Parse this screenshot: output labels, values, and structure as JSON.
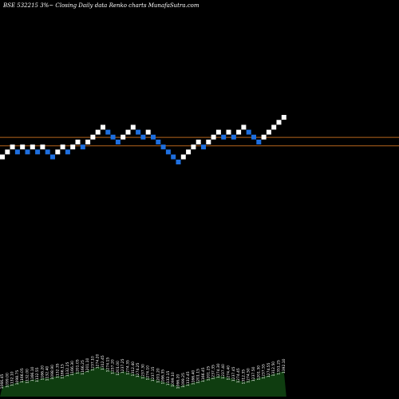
{
  "chart_data": {
    "type": "renko",
    "title": "BSE 532215 3%~  Closing Daily data  Renko  charts MunafaSutra.com",
    "colors": {
      "up": "#ffffff",
      "down": "#1e6fe0",
      "reference_line": "#b5651d",
      "volume_fill": "#0f3d10",
      "background": "#000000"
    },
    "reference_levels": [
      1235.0,
      1174.0
    ],
    "bricks": [
      {
        "close": 1099.0,
        "dir": "up"
      },
      {
        "close": 1132.0,
        "dir": "up"
      },
      {
        "close": 1166.0,
        "dir": "up"
      },
      {
        "close": 1132.0,
        "dir": "down"
      },
      {
        "close": 1166.0,
        "dir": "up"
      },
      {
        "close": 1132.0,
        "dir": "down"
      },
      {
        "close": 1166.0,
        "dir": "up"
      },
      {
        "close": 1132.0,
        "dir": "down"
      },
      {
        "close": 1166.0,
        "dir": "up"
      },
      {
        "close": 1132.0,
        "dir": "down"
      },
      {
        "close": 1099.0,
        "dir": "down"
      },
      {
        "close": 1132.0,
        "dir": "up"
      },
      {
        "close": 1166.0,
        "dir": "up"
      },
      {
        "close": 1132.0,
        "dir": "down"
      },
      {
        "close": 1166.0,
        "dir": "up"
      },
      {
        "close": 1201.0,
        "dir": "up"
      },
      {
        "close": 1166.0,
        "dir": "down"
      },
      {
        "close": 1201.0,
        "dir": "up"
      },
      {
        "close": 1237.0,
        "dir": "up"
      },
      {
        "close": 1274.0,
        "dir": "up"
      },
      {
        "close": 1312.0,
        "dir": "up"
      },
      {
        "close": 1274.0,
        "dir": "down"
      },
      {
        "close": 1237.0,
        "dir": "down"
      },
      {
        "close": 1201.0,
        "dir": "down"
      },
      {
        "close": 1237.0,
        "dir": "up"
      },
      {
        "close": 1274.0,
        "dir": "up"
      },
      {
        "close": 1312.0,
        "dir": "up"
      },
      {
        "close": 1274.0,
        "dir": "down"
      },
      {
        "close": 1237.0,
        "dir": "down"
      },
      {
        "close": 1274.0,
        "dir": "up"
      },
      {
        "close": 1237.0,
        "dir": "down"
      },
      {
        "close": 1201.0,
        "dir": "down"
      },
      {
        "close": 1166.0,
        "dir": "down"
      },
      {
        "close": 1132.0,
        "dir": "down"
      },
      {
        "close": 1099.0,
        "dir": "down"
      },
      {
        "close": 1066.0,
        "dir": "down"
      },
      {
        "close": 1099.0,
        "dir": "up"
      },
      {
        "close": 1132.0,
        "dir": "up"
      },
      {
        "close": 1166.0,
        "dir": "up"
      },
      {
        "close": 1201.0,
        "dir": "up"
      },
      {
        "close": 1166.0,
        "dir": "down"
      },
      {
        "close": 1201.0,
        "dir": "up"
      },
      {
        "close": 1237.0,
        "dir": "up"
      },
      {
        "close": 1274.0,
        "dir": "up"
      },
      {
        "close": 1237.0,
        "dir": "down"
      },
      {
        "close": 1274.0,
        "dir": "up"
      },
      {
        "close": 1237.0,
        "dir": "down"
      },
      {
        "close": 1274.0,
        "dir": "up"
      },
      {
        "close": 1312.0,
        "dir": "up"
      },
      {
        "close": 1274.0,
        "dir": "down"
      },
      {
        "close": 1237.0,
        "dir": "down"
      },
      {
        "close": 1201.0,
        "dir": "down"
      },
      {
        "close": 1237.0,
        "dir": "up"
      },
      {
        "close": 1274.0,
        "dir": "up"
      },
      {
        "close": 1312.0,
        "dir": "up"
      },
      {
        "close": 1351.0,
        "dir": "up"
      },
      {
        "close": 1392.0,
        "dir": "up"
      }
    ],
    "volume_labels": [
      "1066.45",
      "1099.00",
      "1132.10",
      "1098.75",
      "1166.05",
      "1132.00",
      "1166.10",
      "1132.55",
      "1166.20",
      "1132.40",
      "1098.90",
      "1132.35",
      "1166.15",
      "1132.25",
      "1166.30",
      "1201.05",
      "1166.25",
      "1201.10",
      "1237.10",
      "1274.20",
      "1312.45",
      "1274.15",
      "1237.20",
      "1201.00",
      "1237.25",
      "1274.35",
      "1312.40",
      "1274.25",
      "1237.30",
      "1274.10",
      "1237.15",
      "1201.20",
      "1166.35",
      "1132.15",
      "1099.10",
      "1066.20",
      "1099.25",
      "1132.45",
      "1166.40",
      "1201.15",
      "1166.45",
      "1201.25",
      "1237.35",
      "1274.30",
      "1237.40",
      "1274.40",
      "1237.45",
      "1274.45",
      "1312.35",
      "1274.50",
      "1237.50",
      "1201.30",
      "1237.55",
      "1274.55",
      "1312.50",
      "1351.25",
      "1392.10"
    ],
    "volume_profile": [
      0.3,
      0.34,
      0.38,
      0.42,
      0.48,
      0.46,
      0.52,
      0.5,
      0.56,
      0.54,
      0.58,
      0.62,
      0.6,
      0.66,
      0.7,
      0.74,
      0.72,
      0.78,
      0.84,
      0.9,
      0.86,
      0.8,
      0.74,
      0.7,
      0.76,
      0.72,
      0.68,
      0.64,
      0.6,
      0.56,
      0.52,
      0.48,
      0.44,
      0.4,
      0.36,
      0.3,
      0.34,
      0.38,
      0.42,
      0.46,
      0.5,
      0.54,
      0.58,
      0.62,
      0.6,
      0.56,
      0.52,
      0.48,
      0.44,
      0.48,
      0.52,
      0.56,
      0.6,
      0.64,
      0.68,
      0.72,
      0.76
    ]
  }
}
